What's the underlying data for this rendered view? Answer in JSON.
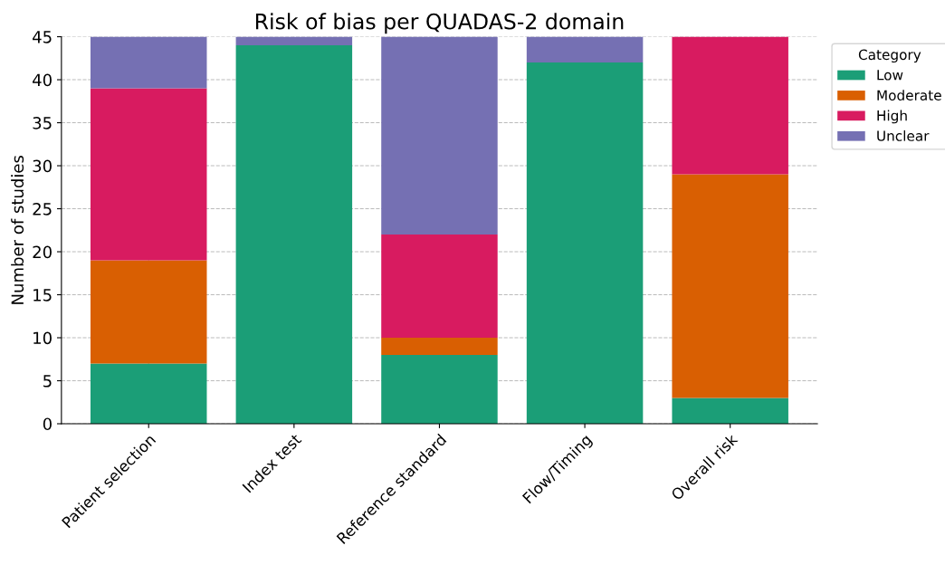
{
  "chart_data": {
    "type": "bar",
    "stacked": true,
    "title": "Risk of bias per QUADAS-2 domain",
    "ylabel": "Number of studies",
    "legend_title": "Category",
    "categories": [
      "Patient selection",
      "Index test",
      "Reference standard",
      "Flow/Timing",
      "Overall risk"
    ],
    "series": [
      {
        "name": "Low",
        "color": "#1b9e77",
        "values": [
          7,
          44,
          8,
          42,
          3
        ]
      },
      {
        "name": "Moderate",
        "color": "#d95f02",
        "values": [
          12,
          0,
          2,
          0,
          26
        ]
      },
      {
        "name": "High",
        "color": "#d81b60",
        "values": [
          20,
          0,
          12,
          0,
          16
        ]
      },
      {
        "name": "Unclear",
        "color": "#7570b3",
        "values": [
          6,
          1,
          23,
          3,
          0
        ]
      }
    ],
    "ylim": [
      0,
      45
    ],
    "yticks": [
      0,
      5,
      10,
      15,
      20,
      25,
      30,
      35,
      40,
      45
    ],
    "grid": true,
    "legend": "top right"
  }
}
